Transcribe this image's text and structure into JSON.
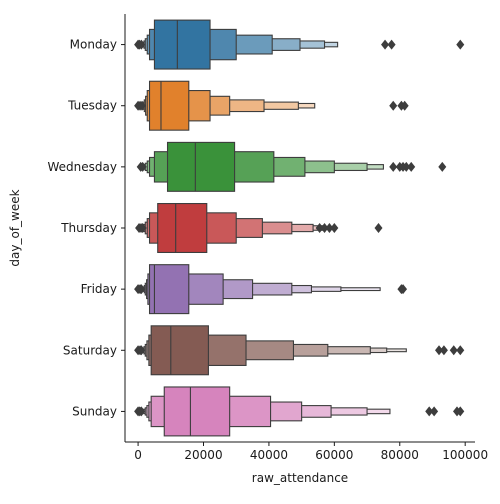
{
  "chart_data": {
    "type": "boxen",
    "orientation": "horizontal",
    "xlabel": "raw_attendance",
    "ylabel": "day_of_week",
    "xlim": [
      -4000,
      103000
    ],
    "xticks": [
      {
        "value": 0,
        "label": "0"
      },
      {
        "value": 20000,
        "label": "20000"
      },
      {
        "value": 40000,
        "label": "40000"
      },
      {
        "value": 60000,
        "label": "60000"
      },
      {
        "value": 80000,
        "label": "80000"
      },
      {
        "value": 100000,
        "label": "100000"
      }
    ],
    "grid": false,
    "legend": "none",
    "series": [
      {
        "name": "Monday",
        "color": "#3274a1",
        "median": 12000,
        "levels": [
          [
            5000,
            22000
          ],
          [
            3500,
            30000
          ],
          [
            2800,
            41000
          ],
          [
            2200,
            49500
          ],
          [
            1800,
            57000
          ],
          [
            1400,
            61000
          ]
        ],
        "outliers": [
          0,
          400,
          1000,
          75500,
          77500,
          98500
        ]
      },
      {
        "name": "Tuesday",
        "color": "#e1812c",
        "median": 7000,
        "levels": [
          [
            3500,
            15500
          ],
          [
            2800,
            22000
          ],
          [
            2300,
            28000
          ],
          [
            1900,
            38500
          ],
          [
            1500,
            49000
          ],
          [
            1200,
            54000
          ]
        ],
        "outliers": [
          0,
          600,
          1200,
          78000,
          80500,
          81500
        ]
      },
      {
        "name": "Wednesday",
        "color": "#3a923a",
        "median": 17500,
        "levels": [
          [
            9000,
            29500
          ],
          [
            5000,
            41500
          ],
          [
            3500,
            51000
          ],
          [
            2800,
            60000
          ],
          [
            2200,
            70000
          ],
          [
            1800,
            75000
          ]
        ],
        "outliers": [
          800,
          1400,
          78000,
          80000,
          81000,
          82000,
          83500,
          93000
        ]
      },
      {
        "name": "Thursday",
        "color": "#c03d3e",
        "median": 11500,
        "levels": [
          [
            6000,
            21000
          ],
          [
            3500,
            30000
          ],
          [
            2800,
            38000
          ],
          [
            2200,
            47000
          ],
          [
            1800,
            53500
          ],
          [
            1400,
            57000
          ]
        ],
        "outliers": [
          300,
          900,
          1400,
          55500,
          57000,
          58500,
          60000,
          73500
        ]
      },
      {
        "name": "Friday",
        "color": "#9372b2",
        "median": 5000,
        "levels": [
          [
            3500,
            15500
          ],
          [
            3000,
            26000
          ],
          [
            2600,
            35000
          ],
          [
            2200,
            47000
          ],
          [
            1900,
            53000
          ],
          [
            1600,
            62000
          ],
          [
            1400,
            74000
          ]
        ],
        "outliers": [
          0,
          600,
          1000,
          80500,
          81000
        ]
      },
      {
        "name": "Saturday",
        "color": "#845b53",
        "median": 10000,
        "levels": [
          [
            4000,
            21500
          ],
          [
            3300,
            33000
          ],
          [
            2700,
            47500
          ],
          [
            2200,
            58000
          ],
          [
            1800,
            71000
          ],
          [
            1400,
            76000
          ],
          [
            1200,
            82000
          ]
        ],
        "outliers": [
          0,
          600,
          1000,
          92000,
          93500,
          96500,
          98500
        ]
      },
      {
        "name": "Sunday",
        "color": "#d684bd",
        "median": 16000,
        "levels": [
          [
            8000,
            28000
          ],
          [
            4000,
            40500
          ],
          [
            3300,
            50000
          ],
          [
            2700,
            59000
          ],
          [
            2200,
            70000
          ],
          [
            1800,
            77000
          ]
        ],
        "outliers": [
          0,
          500,
          1000,
          89000,
          90500,
          97500,
          98500
        ]
      }
    ]
  }
}
